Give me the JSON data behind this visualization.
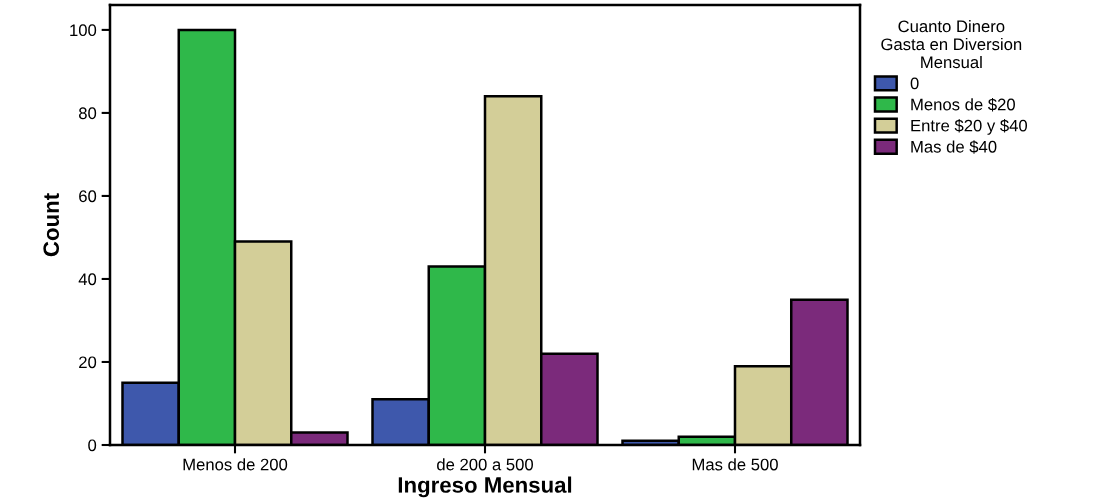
{
  "chart_data": {
    "type": "bar",
    "xlabel": "Ingreso Mensual",
    "ylabel": "Count",
    "legend_title": "Cuanto Dinero\nGasta en Diversion\nMensual",
    "categories": [
      "Menos de 200",
      "de 200 a 500",
      "Mas de 500"
    ],
    "series": [
      {
        "name": "0",
        "color": "#3e58ac",
        "values": [
          15,
          11,
          1
        ]
      },
      {
        "name": "Menos de $20",
        "color": "#2fb84a",
        "values": [
          100,
          43,
          2
        ]
      },
      {
        "name": "Entre $20 y $40",
        "color": "#d3ce98",
        "values": [
          49,
          84,
          19
        ]
      },
      {
        "name": "Mas de $40",
        "color": "#7b2a7b",
        "values": [
          3,
          22,
          35
        ]
      }
    ],
    "ylim": [
      0,
      106
    ],
    "yticks": [
      0,
      20,
      40,
      60,
      80,
      100
    ],
    "grid": false,
    "legend": "top right"
  }
}
